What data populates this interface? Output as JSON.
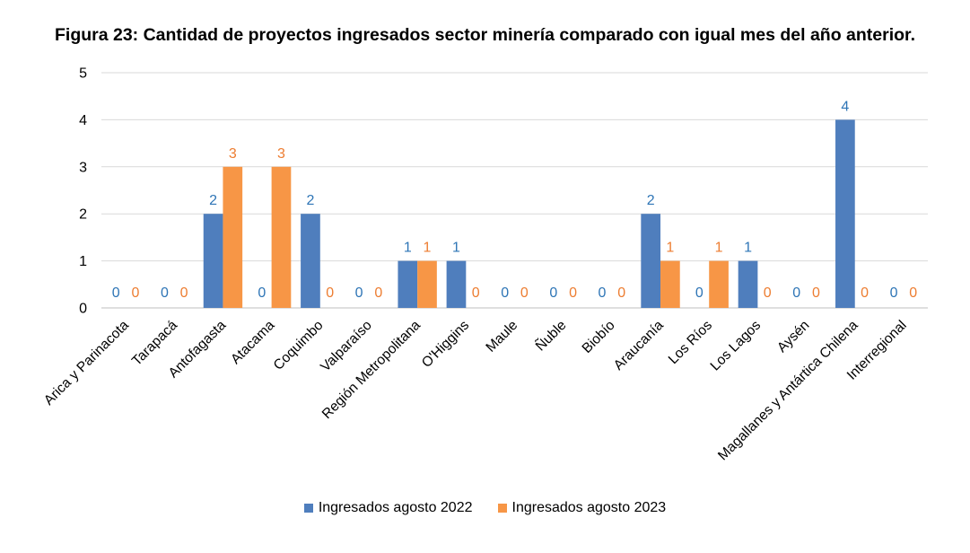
{
  "chart_data": {
    "type": "bar",
    "title": "Figura 23: Cantidad de proyectos ingresados sector minería comparado con igual mes del año anterior.",
    "categories": [
      "Arica y Parinacota",
      "Tarapacá",
      "Antofagasta",
      "Atacama",
      "Coquimbo",
      "Valparaíso",
      "Región Metropolitana",
      "O'Higgins",
      "Maule",
      "Ñuble",
      "Biobío",
      "Araucanía",
      "Los Ríos",
      "Los Lagos",
      "Aysén",
      "Magallanes y Antártica Chilena",
      "Interregional"
    ],
    "series": [
      {
        "name": "Ingresados agosto 2022",
        "color": "#4F7EBD",
        "label_color": "#2E75B6",
        "values": [
          0,
          0,
          2,
          0,
          2,
          0,
          1,
          1,
          0,
          0,
          0,
          2,
          0,
          1,
          0,
          4,
          0
        ]
      },
      {
        "name": "Ingresados agosto 2023",
        "color": "#F79646",
        "label_color": "#ED7D31",
        "values": [
          0,
          0,
          3,
          3,
          0,
          0,
          1,
          0,
          0,
          0,
          0,
          1,
          1,
          0,
          0,
          0,
          0
        ]
      }
    ],
    "ylim": [
      0,
      5
    ],
    "yticks": [
      "0",
      "1",
      "2",
      "3",
      "4",
      "5"
    ],
    "grid": true,
    "legend_position": "bottom"
  }
}
